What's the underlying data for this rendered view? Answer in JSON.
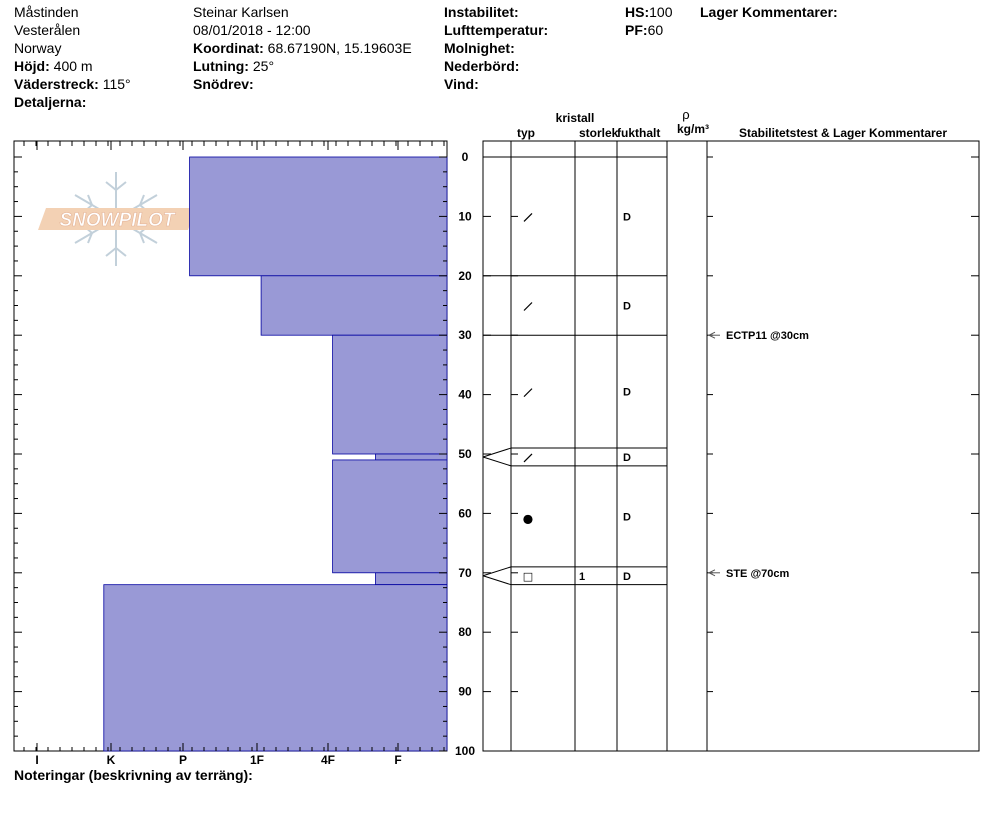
{
  "header": {
    "location": "Måstinden",
    "region": "Vesterålen",
    "country": "Norway",
    "elevation_label": "Höjd:",
    "elevation_value": "400 m",
    "aspect_label": "Väderstreck:",
    "aspect_value": "115°",
    "details_label": "Detaljerna:",
    "observer": "Steinar Karlsen",
    "datetime": "08/01/2018 - 12:00",
    "coord_label": "Koordinat:",
    "coord_value": "68.67190N, 15.19603E",
    "slope_label": "Lutning:",
    "slope_value": "25°",
    "wind_loading_label": "Snödrev:",
    "instability_label": "Instabilitet:",
    "air_temp_label": "Lufttemperatur:",
    "sky_label": "Molnighet:",
    "precip_label": "Nederbörd:",
    "wind_label": "Vind:",
    "hs_label": "HS:",
    "hs_value": "100",
    "pf_label": "PF:",
    "pf_value": "60",
    "layer_comments_label": "Lager Kommentarer:"
  },
  "logo_text": "SNOWPILOT",
  "footer": {
    "notes_label": "Noteringar (beskrivning av terräng):"
  },
  "columns": {
    "crystal_header": "kristall",
    "type_header": "typ",
    "size_header": "storlek",
    "moisture_header": "fukthalt",
    "density_symbol": "ρ",
    "density_unit": "kg/m³",
    "stability_header": "Stabilitetstest & Lager Kommentarer"
  },
  "chart_data": {
    "type": "bar",
    "orientation": "horizontal",
    "y_axis": {
      "label": "",
      "range": [
        0,
        100
      ],
      "ticks": [
        "0",
        "10",
        "20",
        "30",
        "40",
        "50",
        "60",
        "70",
        "80",
        "90",
        "100"
      ],
      "inverted": true
    },
    "x_axis": {
      "ticks": [
        "I",
        "K",
        "P",
        "1F",
        "4F",
        "F"
      ]
    },
    "hardness_scale_note": "bar length measured from right edge; F=1, 4F=2, 1F=3, P=4, K=5",
    "hardness_layers": [
      {
        "top": 0,
        "bottom": 20,
        "hardness": 3.6
      },
      {
        "top": 20,
        "bottom": 30,
        "hardness": 2.6
      },
      {
        "top": 30,
        "bottom": 50,
        "hardness": 1.6
      },
      {
        "top": 50,
        "bottom": 51,
        "hardness": 1.0
      },
      {
        "top": 51,
        "bottom": 70,
        "hardness": 1.6
      },
      {
        "top": 70,
        "bottom": 72,
        "hardness": 1.0
      },
      {
        "top": 72,
        "bottom": 100,
        "hardness": 4.8
      }
    ],
    "strat_layers": [
      {
        "top": 0,
        "bottom": 20,
        "crystal": "/",
        "size": "",
        "moisture": "D"
      },
      {
        "top": 20,
        "bottom": 30,
        "crystal": "/",
        "size": "",
        "moisture": "D"
      },
      {
        "top": 30,
        "bottom": 49,
        "crystal": "/",
        "size": "",
        "moisture": "D"
      },
      {
        "top": 49,
        "bottom": 52,
        "crystal": "/",
        "size": "",
        "moisture": "D"
      },
      {
        "top": 52,
        "bottom": 69,
        "crystal": "●",
        "size": "",
        "moisture": "D"
      },
      {
        "top": 69,
        "bottom": 72,
        "crystal": "□",
        "size": "1",
        "moisture": "D"
      }
    ],
    "stability_tests": [
      {
        "depth": 30,
        "label": "ECTP11 @30cm"
      },
      {
        "depth": 70,
        "label": "STE @70cm"
      }
    ],
    "colors": {
      "bar_fill": "#9999d6",
      "bar_stroke": "#0000a0",
      "arrow": "#555555"
    }
  }
}
